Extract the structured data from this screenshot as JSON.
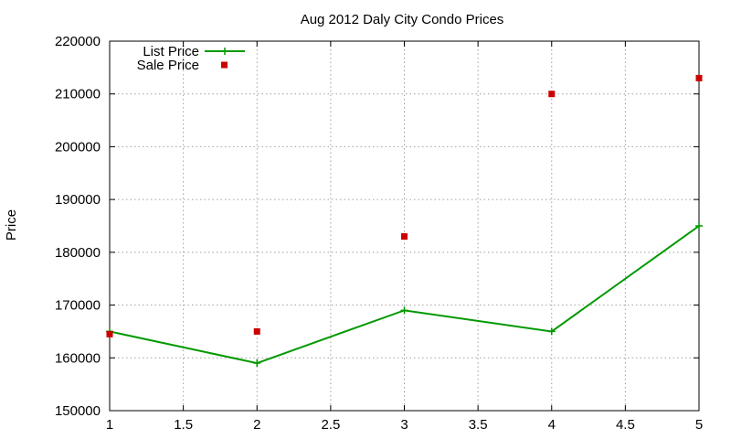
{
  "chart_data": {
    "type": "line",
    "title": "Aug 2012 Daly City Condo Prices",
    "xlabel": "",
    "ylabel": "Price",
    "xlim": [
      1,
      5
    ],
    "ylim": [
      150000,
      220000
    ],
    "x_ticks": [
      1,
      1.5,
      2,
      2.5,
      3,
      3.5,
      4,
      4.5,
      5
    ],
    "y_ticks": [
      150000,
      160000,
      170000,
      180000,
      190000,
      200000,
      210000,
      220000
    ],
    "grid": true,
    "legend_position": "top-left",
    "series": [
      {
        "name": "List Price",
        "style": "line-with-plus-markers",
        "color": "#009900",
        "x": [
          1,
          2,
          3,
          4,
          5
        ],
        "values": [
          165000,
          159000,
          169000,
          165000,
          185000
        ]
      },
      {
        "name": "Sale Price",
        "style": "square-markers",
        "color": "#cc0000",
        "x": [
          1,
          2,
          3,
          4,
          5
        ],
        "values": [
          164500,
          165000,
          183000,
          210000,
          213000
        ]
      }
    ]
  }
}
